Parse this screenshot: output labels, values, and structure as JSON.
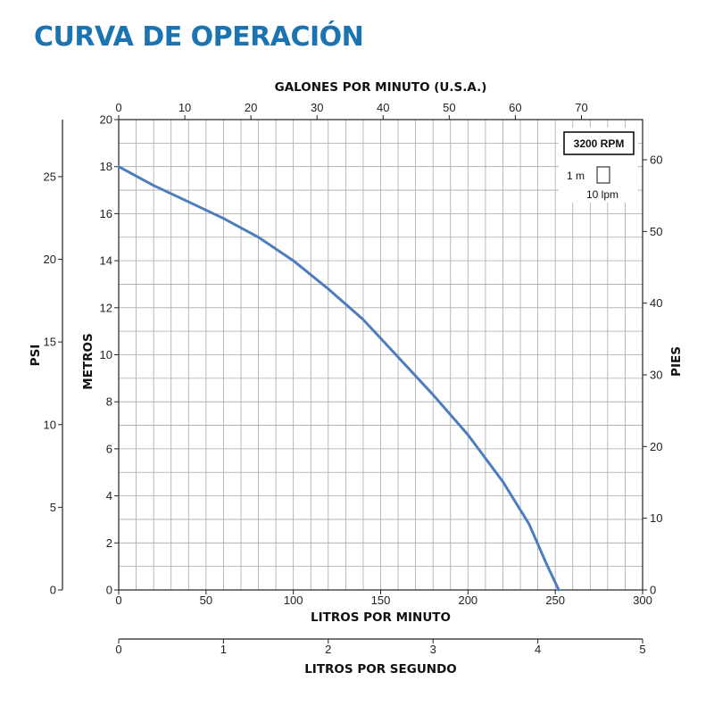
{
  "header": {
    "title": "CURVA DE OPERACIÓN"
  },
  "chart_data": {
    "type": "line",
    "grid": true,
    "series": [
      {
        "x": [
          0,
          20,
          40,
          60,
          80,
          100,
          120,
          140,
          160,
          180,
          200,
          220,
          235,
          245,
          252
        ],
        "values": [
          18.0,
          17.2,
          16.5,
          15.8,
          15.0,
          14.0,
          12.8,
          11.5,
          9.9,
          8.3,
          6.6,
          4.6,
          2.8,
          1.1,
          0.0
        ]
      }
    ],
    "color": "#4e7dbd",
    "axes": {
      "bottom": {
        "label": "LITROS POR MINUTO",
        "range": [
          0,
          300
        ],
        "ticks": [
          "0",
          "50",
          "100",
          "150",
          "200",
          "250",
          "300"
        ]
      },
      "top": {
        "label": "GALONES POR MINUTO (U.S.A.)",
        "range": [
          0,
          79.25
        ],
        "ticks": [
          "0",
          "10",
          "20",
          "30",
          "40",
          "50",
          "60",
          "70"
        ]
      },
      "left": {
        "label": "METROS",
        "range": [
          0,
          20
        ],
        "ticks": [
          "0",
          "2",
          "4",
          "6",
          "8",
          "10",
          "12",
          "14",
          "16",
          "18",
          "20"
        ]
      },
      "right": {
        "label": "PIES",
        "range": [
          0,
          65.6
        ],
        "ticks": [
          "0",
          "10",
          "20",
          "30",
          "40",
          "50",
          "60"
        ]
      },
      "psi": {
        "label": "PSI",
        "range": [
          0,
          28.45
        ],
        "ticks": [
          "0",
          "5",
          "10",
          "15",
          "20",
          "25"
        ]
      },
      "lps": {
        "label": "LITROS POR SEGUNDO",
        "range": [
          0,
          5
        ],
        "ticks": [
          "0",
          "1",
          "2",
          "3",
          "4",
          "5"
        ]
      }
    },
    "legend": {
      "rpm": "3200 RPM",
      "y_unit": "1 m",
      "x_unit": "10 lpm",
      "position": "top-right"
    }
  }
}
